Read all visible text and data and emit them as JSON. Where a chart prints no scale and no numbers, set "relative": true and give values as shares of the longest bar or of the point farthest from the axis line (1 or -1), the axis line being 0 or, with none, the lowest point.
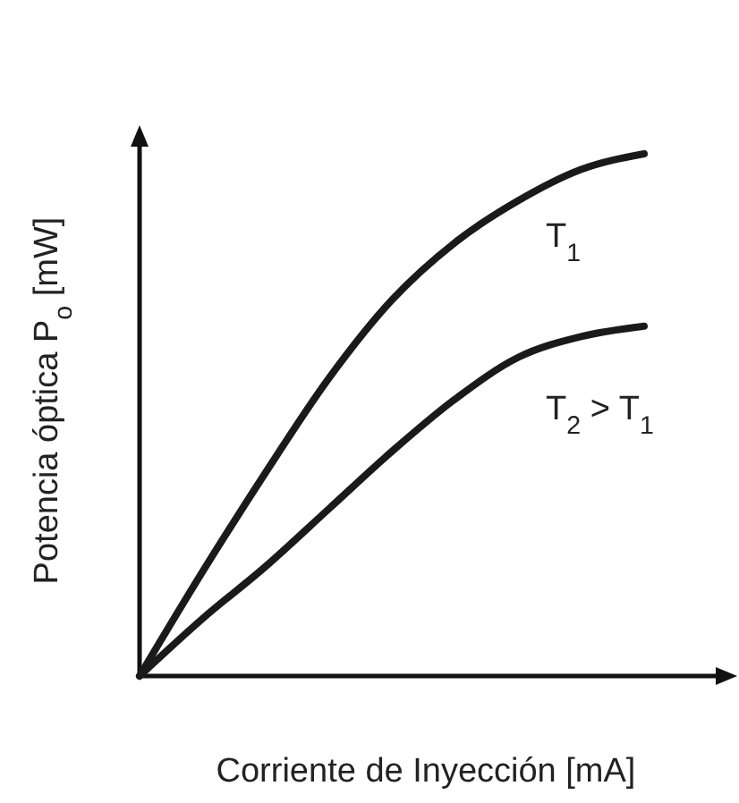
{
  "chart_data": {
    "type": "line",
    "relative": true,
    "xlabel": "Corriente de Inyección [mA]",
    "ylabel": "Potencia óptica P$_{o}$ [mW]",
    "categories": [
      null,
      null,
      null,
      null,
      null,
      null,
      null,
      null,
      null
    ],
    "series": [
      {
        "name": "T$_{1}$",
        "color": "#1a1a1a",
        "values": [
          0,
          0.2,
          0.39,
          0.57,
          0.72,
          0.83,
          0.91,
          0.97,
          1
        ]
      },
      {
        "name": "T$_{2}$ > T$_{1}$",
        "color": "#1a1a1a",
        "values": [
          0,
          0.11,
          0.21,
          0.32,
          0.43,
          0.53,
          0.61,
          0.65,
          0.67
        ]
      }
    ]
  }
}
